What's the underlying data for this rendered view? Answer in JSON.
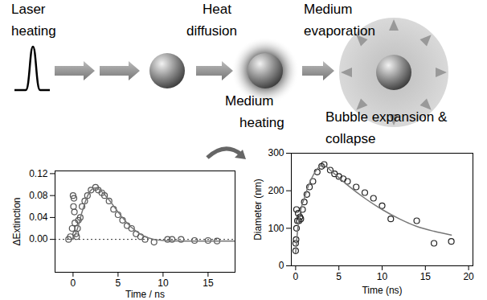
{
  "diagram": {
    "labels": [
      {
        "lines": [
          "Laser",
          "heating"
        ]
      },
      {
        "lines": [
          "Heat",
          "diffusion"
        ]
      },
      {
        "lines": [
          "Medium",
          "heating"
        ]
      },
      {
        "lines": [
          "Medium",
          "evaporation"
        ]
      },
      {
        "lines": [
          "Bubble expansion &",
          "collapse"
        ]
      }
    ]
  },
  "chart_data": [
    {
      "type": "scatter",
      "x_label": "Time / ns",
      "y_label": "ΔExtinction",
      "xlim": [
        -2,
        18
      ],
      "ylim": [
        -0.06,
        0.125
      ],
      "xticks": [
        0,
        5,
        10,
        15
      ],
      "yticks": [
        {
          "value": 0,
          "label": "0.00"
        },
        {
          "value": 0.04,
          "label": "0.04"
        },
        {
          "value": 0.08,
          "label": "0.08"
        },
        {
          "value": 0.12,
          "label": "0.12"
        }
      ],
      "grid": false,
      "series": [
        {
          "type": "hline",
          "values": [
            0
          ],
          "line_style": "dotted",
          "color": "#333333"
        },
        {
          "type": "scatter",
          "marker": "circle",
          "color": "#555555",
          "x": [
            -0.5,
            -0.3,
            -0.1,
            0,
            0.05,
            0.1,
            0.15,
            0.2,
            0.3,
            0.4,
            0.5,
            0.6,
            0.8,
            1,
            1.3,
            1.6,
            2,
            2.5,
            2.8,
            3.2,
            3.5,
            4,
            4.5,
            5,
            5.5,
            6,
            6.5,
            7,
            7.5,
            8,
            9,
            10.5,
            11,
            12,
            13.5,
            15,
            16
          ],
          "values": [
            0,
            0.005,
            0.02,
            0.08,
            0.06,
            0.075,
            0.05,
            0.03,
            0.01,
            0.005,
            0.02,
            0.035,
            0.04,
            0.06,
            0.07,
            0.08,
            0.09,
            0.095,
            0.09,
            0.085,
            0.08,
            0.07,
            0.055,
            0.045,
            0.035,
            0.025,
            0.02,
            0.01,
            0.005,
            0,
            -0.005,
            0,
            0,
            0,
            -0.002,
            -0.002,
            -0.003
          ]
        },
        {
          "type": "line",
          "line_style": "solid",
          "color": "#777777",
          "x": [
            0,
            0.5,
            1,
            1.5,
            2,
            2.5,
            3,
            4,
            5,
            6,
            7,
            8,
            9,
            10,
            12,
            16,
            18
          ],
          "values": [
            0,
            0.02,
            0.05,
            0.075,
            0.09,
            0.094,
            0.09,
            0.072,
            0.05,
            0.03,
            0.015,
            0.005,
            0,
            -0.002,
            -0.003,
            -0.003,
            -0.003
          ]
        }
      ]
    },
    {
      "type": "scatter",
      "x_label": "Time (ns)",
      "y_label": "Diameter (nm)",
      "xlim": [
        -0.5,
        20.5
      ],
      "ylim": [
        0,
        300
      ],
      "xticks": [
        0,
        5,
        10,
        15,
        20
      ],
      "yticks": [
        0,
        100,
        200,
        300
      ],
      "grid": false,
      "series": [
        {
          "type": "scatter",
          "marker": "circle",
          "color": "#222222",
          "x": [
            0,
            0,
            0.05,
            0.1,
            0.1,
            0.2,
            0.3,
            0.4,
            0.5,
            0.6,
            0.8,
            1,
            1.3,
            1.6,
            2,
            2.5,
            3,
            3.3,
            4,
            4.5,
            5,
            5.5,
            6,
            7,
            8,
            9,
            10,
            11,
            14,
            16,
            18
          ],
          "values": [
            40,
            60,
            70,
            100,
            150,
            120,
            140,
            120,
            130,
            125,
            150,
            170,
            190,
            210,
            225,
            250,
            265,
            270,
            255,
            245,
            238,
            232,
            225,
            210,
            195,
            180,
            160,
            125,
            120,
            60,
            65
          ]
        },
        {
          "type": "line",
          "line_style": "solid",
          "color": "#777777",
          "x": [
            0,
            0.3,
            0.6,
            1,
            1.5,
            2,
            2.5,
            3,
            3.5,
            4,
            5,
            6,
            8,
            10,
            12,
            14,
            16,
            18
          ],
          "values": [
            35,
            110,
            150,
            180,
            215,
            240,
            258,
            268,
            265,
            255,
            235,
            215,
            180,
            150,
            125,
            105,
            92,
            82
          ]
        }
      ]
    }
  ]
}
